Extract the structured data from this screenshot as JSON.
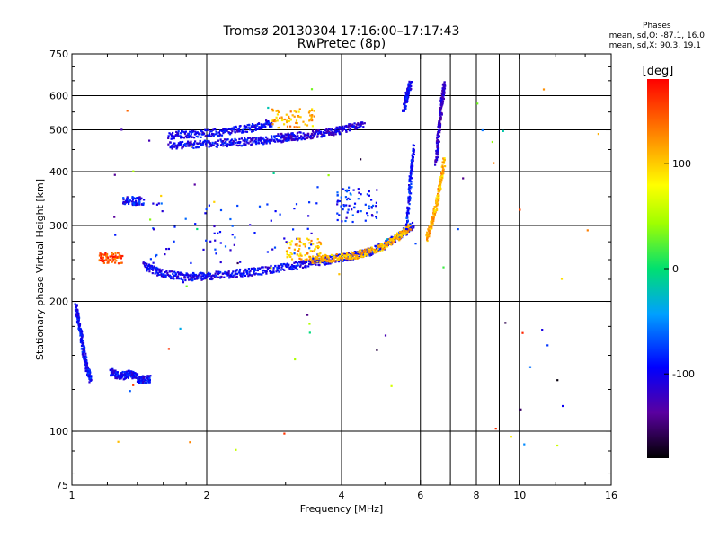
{
  "chart_data": {
    "type": "scatter",
    "title": "Tromsø 20130304 17:16:00–17:17:43",
    "subtitle": "RwPretec (8p)",
    "xlabel": "Frequency [MHz]",
    "ylabel": "Stationary phase Virtual Height [km]",
    "x_scale": "log",
    "y_scale": "log",
    "xlim": [
      1,
      16
    ],
    "ylim": [
      75,
      750
    ],
    "x_ticks": [
      1,
      2,
      4,
      6,
      8,
      10,
      16
    ],
    "y_ticks": [
      75,
      100,
      200,
      300,
      400,
      500,
      600,
      750
    ],
    "x_gridlines": [
      2,
      4,
      6,
      7,
      8,
      9,
      10
    ],
    "y_gridlines": [
      100,
      200,
      300,
      400,
      500,
      600
    ],
    "grid": true,
    "phases": {
      "title": "Phases",
      "o_line": "mean, sd,O: -87.1, 16.0",
      "x_line": "mean, sd,X:  90.3, 19.1"
    },
    "colorbar": {
      "label": "[deg]",
      "range": [
        -180,
        180
      ],
      "ticks": [
        100,
        0,
        -100
      ],
      "placement": "right"
    },
    "traces": [
      {
        "x": [
          1.02,
          1.04,
          1.06,
          1.08,
          1.1
        ],
        "y": [
          195,
          175,
          155,
          140,
          132
        ],
        "phase": -95
      },
      {
        "x": [
          1.22,
          1.28,
          1.35,
          1.42,
          1.5
        ],
        "y": [
          138,
          134,
          136,
          132,
          132
        ],
        "phase": -95
      },
      {
        "x": [
          1.45,
          1.6,
          1.8,
          2.0,
          2.3,
          2.6,
          3.0,
          3.4,
          3.8,
          4.2
        ],
        "y": [
          242,
          232,
          228,
          229,
          232,
          235,
          240,
          245,
          250,
          255
        ],
        "phase": -100
      },
      {
        "x": [
          4.2,
          4.6,
          5.0,
          5.4,
          5.8
        ],
        "y": [
          255,
          260,
          270,
          285,
          300
        ],
        "phase": -95
      },
      {
        "x": [
          3.4,
          3.8,
          4.3,
          4.8,
          5.3,
          5.7
        ],
        "y": [
          250,
          252,
          256,
          265,
          280,
          298
        ],
        "phase": 110
      },
      {
        "x": [
          1.65,
          1.9,
          2.2,
          2.5,
          2.8
        ],
        "y": [
          485,
          490,
          495,
          505,
          520
        ],
        "phase": -100
      },
      {
        "x": [
          1.65,
          1.9,
          2.2,
          2.5,
          2.8,
          3.2
        ],
        "y": [
          460,
          463,
          466,
          470,
          475,
          480
        ],
        "phase": -100
      },
      {
        "x": [
          2.9,
          3.3,
          3.7,
          4.0,
          4.5
        ],
        "y": [
          480,
          485,
          493,
          500,
          520
        ],
        "phase": -110
      },
      {
        "x": [
          5.6,
          5.7,
          5.8
        ],
        "y": [
          300,
          380,
          460
        ],
        "phase": -90
      },
      {
        "x": [
          6.5,
          6.6,
          6.7,
          6.8
        ],
        "y": [
          420,
          500,
          580,
          640
        ],
        "phase": -120
      },
      {
        "x": [
          6.2,
          6.4,
          6.6,
          6.8
        ],
        "y": [
          280,
          310,
          360,
          430
        ],
        "phase": 110
      },
      {
        "x": [
          5.5,
          5.6,
          5.7
        ],
        "y": [
          560,
          600,
          640
        ],
        "phase": -100
      }
    ],
    "clusters": [
      {
        "x": [
          1.5,
          3.6
        ],
        "y": [
          245,
          340
        ],
        "phase": -90
      },
      {
        "x": [
          3.0,
          3.6
        ],
        "y": [
          250,
          280
        ],
        "phase": 110
      },
      {
        "x": [
          3.9,
          4.8
        ],
        "y": [
          305,
          370
        ],
        "phase": -90
      },
      {
        "x": [
          1.15,
          1.3
        ],
        "y": [
          245,
          260
        ],
        "phase": 150
      },
      {
        "x": [
          1.3,
          1.45
        ],
        "y": [
          335,
          350
        ],
        "phase": -95
      },
      {
        "x": [
          2.8,
          3.5
        ],
        "y": [
          505,
          560
        ],
        "phase": 110
      }
    ],
    "scatter_range": {
      "x": [
        1.0,
        15.0
      ],
      "y": [
        90,
        650
      ]
    }
  }
}
